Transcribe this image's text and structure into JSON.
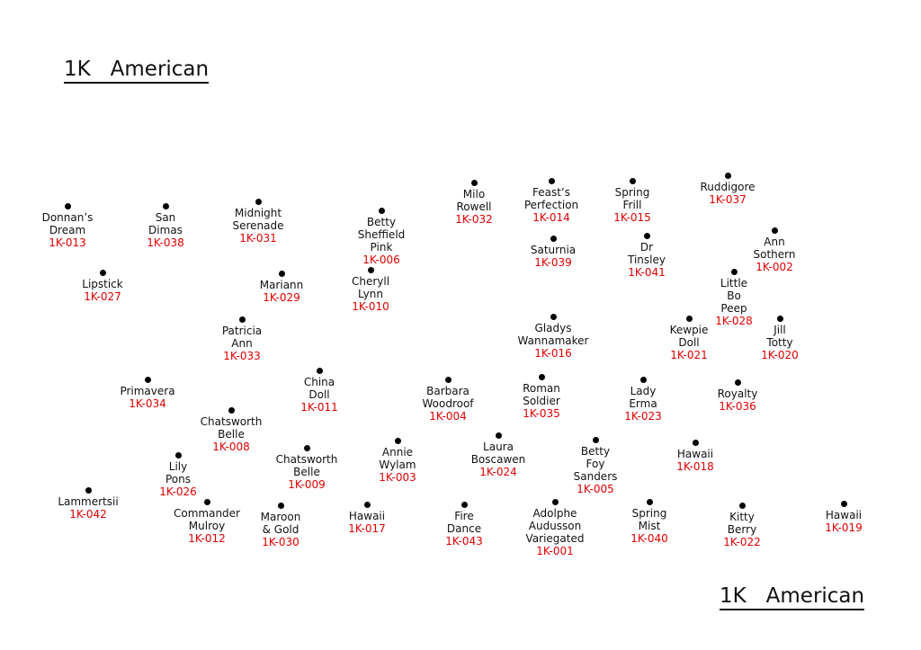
{
  "titles": {
    "top": "1K   American",
    "bottom": "1K   American"
  },
  "colors": {
    "dot": "#000000",
    "name": "#111111",
    "code": "#e00000"
  },
  "plants": [
    {
      "name": "Donnan’s\nDream",
      "code": "1K-013"
    },
    {
      "name": "San Dimas",
      "code": "1K-038"
    },
    {
      "name": "Midnight\nSerenade",
      "code": "1K-031"
    },
    {
      "name": "Betty\nSheffield Pink",
      "code": "1K-006"
    },
    {
      "name": "Milo Rowell",
      "code": "1K-032"
    },
    {
      "name": "Feast’s\nPerfection",
      "code": "1K-014"
    },
    {
      "name": "Spring Frill",
      "code": "1K-015"
    },
    {
      "name": "Ruddigore",
      "code": "1K-037"
    },
    {
      "name": "Saturnia",
      "code": "1K-039"
    },
    {
      "name": "Dr Tinsley",
      "code": "1K-041"
    },
    {
      "name": "Ann Sothern",
      "code": "1K-002"
    },
    {
      "name": "Lipstick",
      "code": "1K-027"
    },
    {
      "name": "Mariann",
      "code": "1K-029"
    },
    {
      "name": "Cheryll Lynn",
      "code": "1K-010"
    },
    {
      "name": "Little Bo Peep",
      "code": "1K-028"
    },
    {
      "name": "Patricia Ann",
      "code": "1K-033"
    },
    {
      "name": "Gladys\nWannamaker",
      "code": "1K-016"
    },
    {
      "name": "Kewpie Doll",
      "code": "1K-021"
    },
    {
      "name": "Jill Totty",
      "code": "1K-020"
    },
    {
      "name": "Primavera",
      "code": "1K-034"
    },
    {
      "name": "China Doll",
      "code": "1K-011"
    },
    {
      "name": "Barbara\nWoodroof",
      "code": "1K-004"
    },
    {
      "name": "Roman\nSoldier",
      "code": "1K-035"
    },
    {
      "name": "Lady Erma",
      "code": "1K-023"
    },
    {
      "name": "Royalty",
      "code": "1K-036"
    },
    {
      "name": "Chatsworth\nBelle",
      "code": "1K-008"
    },
    {
      "name": "Annie Wylam",
      "code": "1K-003"
    },
    {
      "name": "Laura\nBoscawen",
      "code": "1K-024"
    },
    {
      "name": "Betty Foy\nSanders",
      "code": "1K-005"
    },
    {
      "name": "Hawaii",
      "code": "1K-018"
    },
    {
      "name": "Lily Pons",
      "code": "1K-026"
    },
    {
      "name": "Chatsworth\nBelle",
      "code": "1K-009"
    },
    {
      "name": "Lammertsii",
      "code": "1K-042"
    },
    {
      "name": "Commander\nMulroy",
      "code": "1K-012"
    },
    {
      "name": "Maroon\n& Gold",
      "code": "1K-030"
    },
    {
      "name": "Hawaii",
      "code": "1K-017"
    },
    {
      "name": "Fire Dance",
      "code": "1K-043"
    },
    {
      "name": "Adolphe Audusson\nVariegated",
      "code": "1K-001"
    },
    {
      "name": "Spring Mist",
      "code": "1K-040"
    },
    {
      "name": "Kitty Berry",
      "code": "1K-022"
    },
    {
      "name": "Hawaii",
      "code": "1K-019"
    }
  ]
}
